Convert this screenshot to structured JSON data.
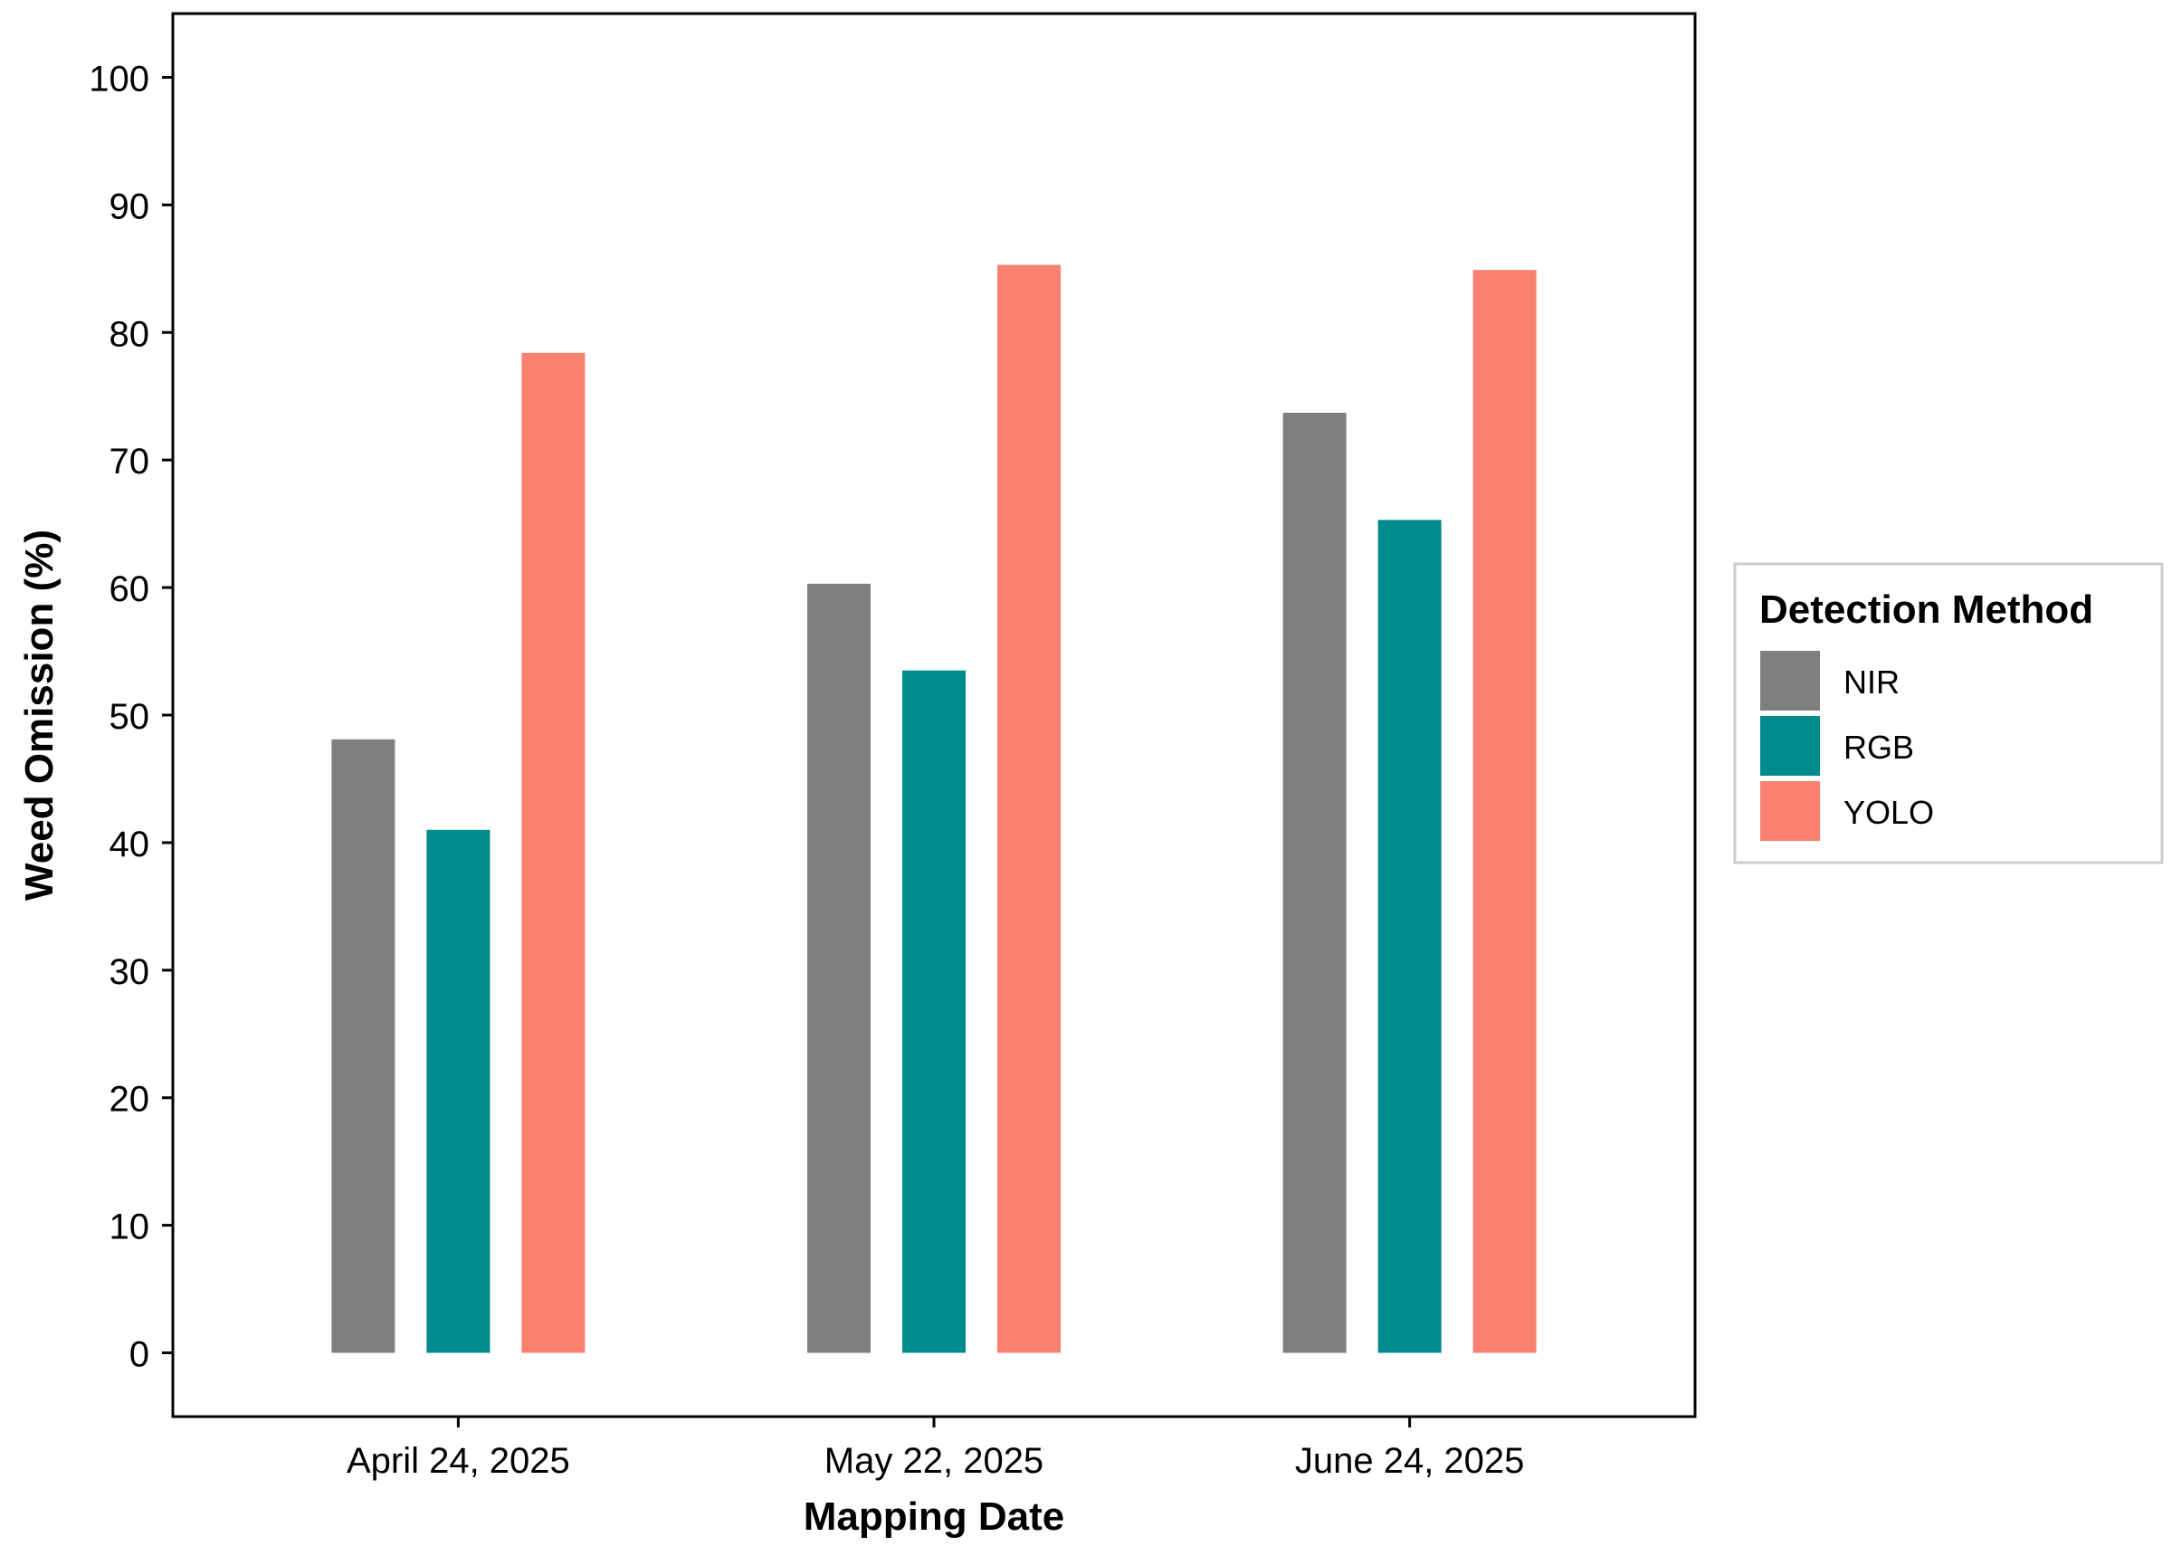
{
  "chart_data": {
    "type": "bar",
    "title": "",
    "xlabel": "Mapping Date",
    "ylabel": "Weed Omission (%)",
    "categories": [
      "April 24, 2025",
      "May 22, 2025",
      "June 24, 2025"
    ],
    "series": [
      {
        "name": "NIR",
        "color": "#7f7f7f",
        "values": [
          48.1,
          60.3,
          73.7
        ]
      },
      {
        "name": "RGB",
        "color": "#008b8b",
        "values": [
          41.0,
          53.5,
          65.3
        ]
      },
      {
        "name": "YOLO",
        "color": "#fa8072",
        "values": [
          78.4,
          85.3,
          84.9
        ]
      }
    ],
    "ylim": [
      -5,
      105
    ],
    "yticks": [
      0,
      10,
      20,
      30,
      40,
      50,
      60,
      70,
      80,
      90,
      100
    ],
    "grid": false,
    "legend": {
      "title": "Detection Method",
      "position": "right"
    }
  }
}
